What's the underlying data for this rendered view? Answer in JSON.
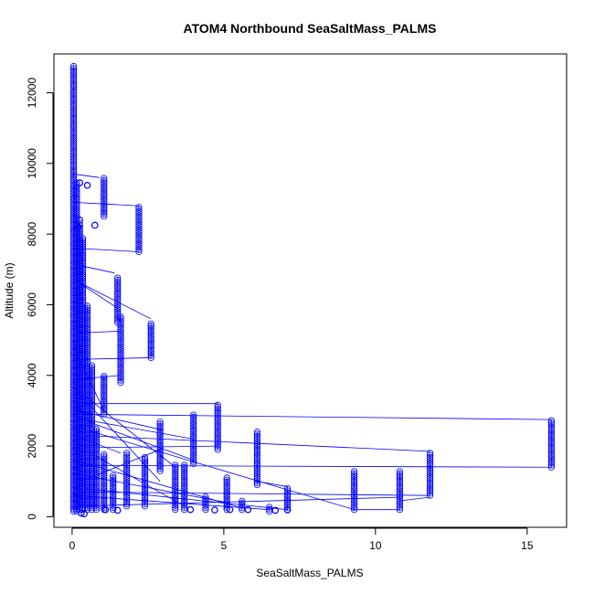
{
  "chart_data": {
    "type": "scatter",
    "title": "ATOM4 Northbound SeaSaltMass_PALMS",
    "xlabel": "SeaSaltMass_PALMS",
    "ylabel": "Altitude (m)",
    "xlim": [
      -0.6,
      16.3
    ],
    "ylim": [
      -300,
      13100
    ],
    "x_ticks": [
      0,
      5,
      10,
      15
    ],
    "x_tick_labels": [
      "0",
      "5",
      "10",
      "15"
    ],
    "y_ticks": [
      0,
      2000,
      4000,
      6000,
      8000,
      10000,
      12000
    ],
    "y_tick_labels": [
      "0",
      "2000",
      "4000",
      "6000",
      "8000",
      "10000",
      "12000"
    ],
    "grid": false,
    "legend": "none",
    "marker": "open-circle",
    "connected_by_lines": true,
    "color": "#0000ff",
    "profiles": [
      {
        "x": 0.05,
        "y_min": 150,
        "y_max": 12800
      },
      {
        "x": 0.15,
        "y_min": 150,
        "y_max": 9500
      },
      {
        "x": 0.25,
        "y_min": 200,
        "y_max": 8300
      },
      {
        "x": 0.35,
        "y_min": 200,
        "y_max": 7900
      },
      {
        "x": 0.5,
        "y_min": 200,
        "y_max": 6000
      },
      {
        "x": 0.65,
        "y_min": 200,
        "y_max": 4300
      },
      {
        "x": 0.8,
        "y_min": 200,
        "y_max": 2500
      },
      {
        "x": 1.05,
        "y_min": 8500,
        "y_max": 9600
      },
      {
        "x": 1.05,
        "y_min": 2900,
        "y_max": 4000
      },
      {
        "x": 1.05,
        "y_min": 200,
        "y_max": 1800
      },
      {
        "x": 1.35,
        "y_min": 200,
        "y_max": 1200
      },
      {
        "x": 1.5,
        "y_min": 5500,
        "y_max": 6800
      },
      {
        "x": 1.6,
        "y_min": 3800,
        "y_max": 5700
      },
      {
        "x": 1.8,
        "y_min": 300,
        "y_max": 1800
      },
      {
        "x": 2.2,
        "y_min": 7500,
        "y_max": 8800
      },
      {
        "x": 2.4,
        "y_min": 300,
        "y_max": 1700
      },
      {
        "x": 2.6,
        "y_min": 4500,
        "y_max": 5500
      },
      {
        "x": 2.9,
        "y_min": 1300,
        "y_max": 2700
      },
      {
        "x": 3.4,
        "y_min": 200,
        "y_max": 1500
      },
      {
        "x": 3.7,
        "y_min": 200,
        "y_max": 1500
      },
      {
        "x": 4.0,
        "y_min": 1500,
        "y_max": 2900
      },
      {
        "x": 4.4,
        "y_min": 200,
        "y_max": 600
      },
      {
        "x": 4.8,
        "y_min": 1900,
        "y_max": 3200
      },
      {
        "x": 5.1,
        "y_min": 200,
        "y_max": 1100
      },
      {
        "x": 5.6,
        "y_min": 200,
        "y_max": 450
      },
      {
        "x": 6.1,
        "y_min": 900,
        "y_max": 2400
      },
      {
        "x": 6.5,
        "y_min": 150,
        "y_max": 300
      },
      {
        "x": 7.1,
        "y_min": 200,
        "y_max": 850
      },
      {
        "x": 9.3,
        "y_min": 200,
        "y_max": 1300
      },
      {
        "x": 10.8,
        "y_min": 200,
        "y_max": 1300
      },
      {
        "x": 11.8,
        "y_min": 600,
        "y_max": 1800
      },
      {
        "x": 15.8,
        "y_min": 1400,
        "y_max": 2750
      }
    ],
    "extra_points": [
      {
        "x": 0.25,
        "y": 9450
      },
      {
        "x": 0.5,
        "y": 9380
      },
      {
        "x": 0.75,
        "y": 8250
      },
      {
        "x": 0.2,
        "y": 8200
      },
      {
        "x": 0.25,
        "y": 8400
      },
      {
        "x": 1.1,
        "y": 200
      },
      {
        "x": 1.5,
        "y": 180
      },
      {
        "x": 3.9,
        "y": 200
      },
      {
        "x": 4.7,
        "y": 190
      },
      {
        "x": 5.2,
        "y": 200
      },
      {
        "x": 5.8,
        "y": 200
      },
      {
        "x": 6.7,
        "y": 180
      },
      {
        "x": 7.1,
        "y": 190
      },
      {
        "x": 0.3,
        "y": 100
      },
      {
        "x": 0.4,
        "y": 80
      }
    ],
    "connecting_segments": [
      [
        [
          0.05,
          9700
        ],
        [
          0.9,
          9600
        ]
      ],
      [
        [
          0.05,
          8900
        ],
        [
          2.2,
          8800
        ]
      ],
      [
        [
          0.1,
          7600
        ],
        [
          2.2,
          7500
        ]
      ],
      [
        [
          0.3,
          7100
        ],
        [
          1.4,
          6900
        ]
      ],
      [
        [
          0.3,
          6600
        ],
        [
          2.6,
          5600
        ]
      ],
      [
        [
          0.2,
          5200
        ],
        [
          1.5,
          5250
        ]
      ],
      [
        [
          0.05,
          4450
        ],
        [
          2.6,
          4500
        ]
      ],
      [
        [
          0.3,
          3900
        ],
        [
          1.6,
          4000
        ]
      ],
      [
        [
          0.05,
          3200
        ],
        [
          4.8,
          3200
        ]
      ],
      [
        [
          0.05,
          2900
        ],
        [
          15.8,
          2750
        ]
      ],
      [
        [
          0.4,
          2300
        ],
        [
          11.8,
          1850
        ]
      ],
      [
        [
          0.05,
          2800
        ],
        [
          4.0,
          2200
        ]
      ],
      [
        [
          0.2,
          3000
        ],
        [
          3.0,
          2450
        ]
      ],
      [
        [
          0.2,
          1950
        ],
        [
          4.8,
          2000
        ]
      ],
      [
        [
          0.2,
          1450
        ],
        [
          15.8,
          1400
        ]
      ],
      [
        [
          0.3,
          1000
        ],
        [
          2.9,
          1900
        ]
      ],
      [
        [
          0.1,
          2300
        ],
        [
          1.6,
          1800
        ]
      ],
      [
        [
          0.3,
          700
        ],
        [
          11.8,
          600
        ]
      ],
      [
        [
          0.2,
          300
        ],
        [
          10.8,
          550
        ]
      ],
      [
        [
          0.1,
          6700
        ],
        [
          1.5,
          5900
        ]
      ],
      [
        [
          0.3,
          3500
        ],
        [
          3.4,
          1400
        ]
      ],
      [
        [
          0.5,
          2700
        ],
        [
          4.0,
          1600
        ]
      ],
      [
        [
          0.2,
          1200
        ],
        [
          5.1,
          400
        ]
      ],
      [
        [
          0.4,
          800
        ],
        [
          7.1,
          200
        ]
      ],
      [
        [
          0.6,
          1800
        ],
        [
          3.7,
          300
        ]
      ],
      [
        [
          0.05,
          4800
        ],
        [
          1.05,
          3000
        ]
      ],
      [
        [
          0.05,
          600
        ],
        [
          6.5,
          200
        ]
      ],
      [
        [
          0.3,
          2500
        ],
        [
          9.3,
          200
        ]
      ],
      [
        [
          6.1,
          1000
        ],
        [
          7.1,
          850
        ]
      ],
      [
        [
          9.3,
          200
        ],
        [
          10.8,
          200
        ]
      ],
      [
        [
          10.8,
          450
        ],
        [
          11.8,
          550
        ]
      ],
      [
        [
          0.1,
          3600
        ],
        [
          2.9,
          1000
        ]
      ],
      [
        [
          0.05,
          1600
        ],
        [
          5.6,
          250
        ]
      ]
    ]
  }
}
